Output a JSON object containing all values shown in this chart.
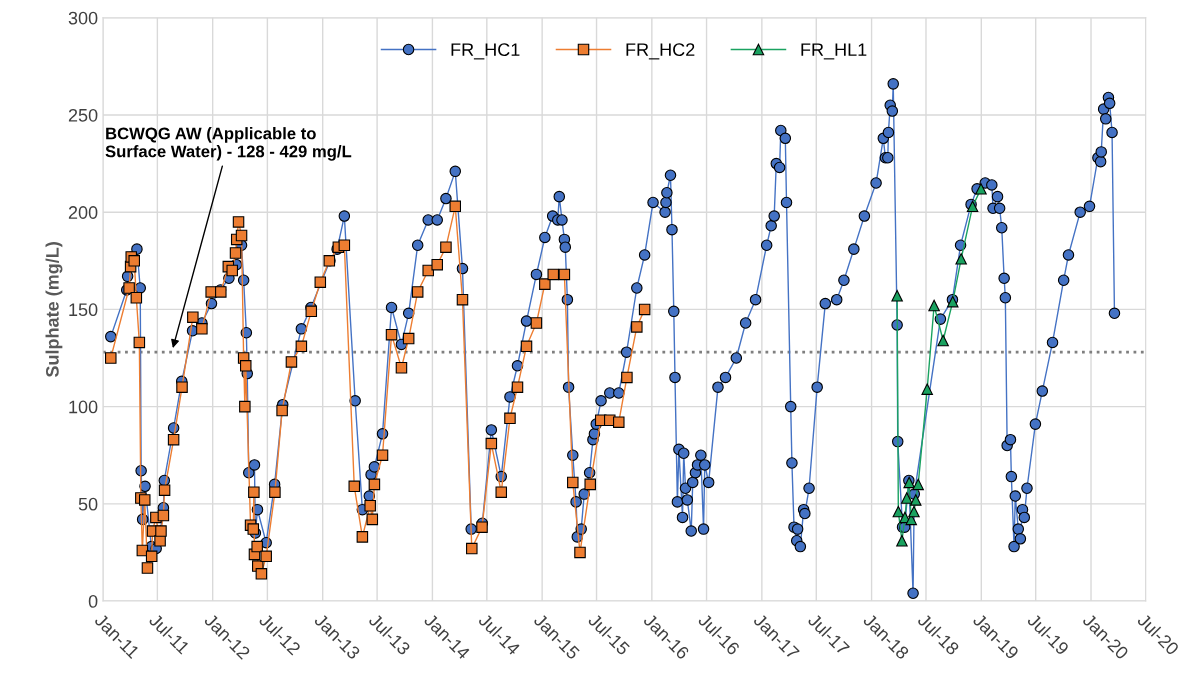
{
  "chart_data": {
    "type": "line",
    "ylabel": "Sulphate (mg/L)",
    "xlim": [
      "2011-01-01",
      "2020-07-01"
    ],
    "xticks": [
      {
        "value": "2011-01-01",
        "label": "Jan-11"
      },
      {
        "value": "2011-07-01",
        "label": "Jul-11"
      },
      {
        "value": "2012-01-01",
        "label": "Jan-12"
      },
      {
        "value": "2012-07-01",
        "label": "Jul-12"
      },
      {
        "value": "2013-01-01",
        "label": "Jan-13"
      },
      {
        "value": "2013-07-01",
        "label": "Jul-13"
      },
      {
        "value": "2014-01-01",
        "label": "Jan-14"
      },
      {
        "value": "2014-07-01",
        "label": "Jul-14"
      },
      {
        "value": "2015-01-01",
        "label": "Jan-15"
      },
      {
        "value": "2015-07-01",
        "label": "Jul-15"
      },
      {
        "value": "2016-01-01",
        "label": "Jan-16"
      },
      {
        "value": "2016-07-01",
        "label": "Jul-16"
      },
      {
        "value": "2017-01-01",
        "label": "Jan-17"
      },
      {
        "value": "2017-07-01",
        "label": "Jul-17"
      },
      {
        "value": "2018-01-01",
        "label": "Jan-18"
      },
      {
        "value": "2018-07-01",
        "label": "Jul-18"
      },
      {
        "value": "2019-01-01",
        "label": "Jan-19"
      },
      {
        "value": "2019-07-01",
        "label": "Jul-19"
      },
      {
        "value": "2020-01-01",
        "label": "Jan-20"
      },
      {
        "value": "2020-07-01",
        "label": "Jul-20"
      }
    ],
    "ylim": [
      0,
      300
    ],
    "yticks": [
      0,
      50,
      100,
      150,
      200,
      250,
      300
    ],
    "grid": true,
    "legend": "top",
    "ref_lines": [
      {
        "axis": "y",
        "value": 128,
        "color": "#7f7f7f",
        "line_style": "dotted"
      }
    ],
    "annotations": [
      "BCWQG AW (Applicable to\nSurface Water) - 128 - 429 mg/L"
    ],
    "series": [
      {
        "name": "FR_HC1",
        "color": "#4472c4",
        "marker": "circle",
        "x": [
          "2011-01-27",
          "2011-03-21",
          "2011-03-24",
          "2011-04-07",
          "2011-04-24",
          "2011-05-05",
          "2011-05-08",
          "2011-05-13",
          "2011-05-21",
          "2011-06-11",
          "2011-06-27",
          "2011-07-11",
          "2011-07-21",
          "2011-07-24",
          "2011-08-24",
          "2011-09-20",
          "2011-10-26",
          "2011-11-26",
          "2011-12-28",
          "2012-01-27",
          "2012-02-24",
          "2012-03-07",
          "2012-03-20",
          "2012-04-06",
          "2012-04-13",
          "2012-04-22",
          "2012-04-25",
          "2012-04-30",
          "2012-05-19",
          "2012-05-22",
          "2012-05-29",
          "2012-06-27",
          "2012-07-25",
          "2012-08-21",
          "2012-10-22",
          "2012-11-23",
          "2013-01-25",
          "2013-02-18",
          "2013-03-14",
          "2013-04-19",
          "2013-05-13",
          "2013-06-05",
          "2013-06-11",
          "2013-06-22",
          "2013-07-19",
          "2013-08-18",
          "2013-09-20",
          "2013-10-14",
          "2013-11-13",
          "2013-12-18",
          "2014-01-17",
          "2014-02-15",
          "2014-03-18",
          "2014-04-11",
          "2014-05-10",
          "2014-06-16",
          "2014-07-16",
          "2014-08-18",
          "2014-09-16",
          "2014-10-11",
          "2014-11-10",
          "2014-12-13",
          "2015-01-10",
          "2015-02-05",
          "2015-02-22",
          "2015-02-27",
          "2015-03-08",
          "2015-03-16",
          "2015-03-19",
          "2015-03-26",
          "2015-03-30",
          "2015-04-13",
          "2015-04-24",
          "2015-04-28",
          "2015-05-11",
          "2015-05-21",
          "2015-06-08",
          "2015-06-19",
          "2015-06-24",
          "2015-06-30",
          "2015-07-16",
          "2015-08-14",
          "2015-09-13",
          "2015-10-09",
          "2015-11-12",
          "2015-12-08",
          "2016-01-05",
          "2016-02-14",
          "2016-02-17",
          "2016-02-20",
          "2016-03-03",
          "2016-03-08",
          "2016-03-14",
          "2016-03-18",
          "2016-03-26",
          "2016-03-31",
          "2016-04-12",
          "2016-04-16",
          "2016-04-22",
          "2016-04-28",
          "2016-05-11",
          "2016-05-16",
          "2016-05-25",
          "2016-06-01",
          "2016-06-12",
          "2016-06-21",
          "2016-06-25",
          "2016-07-08",
          "2016-08-08",
          "2016-09-02",
          "2016-10-08",
          "2016-11-08",
          "2016-12-11",
          "2017-01-17",
          "2017-02-01",
          "2017-02-11",
          "2017-02-18",
          "2017-03-01",
          "2017-03-05",
          "2017-03-20",
          "2017-03-24",
          "2017-04-07",
          "2017-04-11",
          "2017-04-18",
          "2017-04-27",
          "2017-04-30",
          "2017-05-09",
          "2017-05-20",
          "2017-05-24",
          "2017-06-07",
          "2017-07-04",
          "2017-07-31",
          "2017-09-07",
          "2017-10-01",
          "2017-11-03",
          "2017-12-08",
          "2018-01-16",
          "2018-02-09",
          "2018-02-16",
          "2018-02-24",
          "2018-02-26",
          "2018-03-04",
          "2018-03-11",
          "2018-03-14",
          "2018-03-27",
          "2018-03-29",
          "2018-04-14",
          "2018-04-21",
          "2018-05-05",
          "2018-05-19",
          "2018-05-23",
          "2018-08-18",
          "2018-09-27",
          "2018-10-24",
          "2018-11-28",
          "2018-12-18",
          "2019-01-14",
          "2019-02-05",
          "2019-02-09",
          "2019-02-24",
          "2019-03-03",
          "2019-03-10",
          "2019-03-18",
          "2019-03-22",
          "2019-03-28",
          "2019-04-08",
          "2019-04-11",
          "2019-04-20",
          "2019-04-24",
          "2019-05-04",
          "2019-05-11",
          "2019-05-18",
          "2019-05-24",
          "2019-06-02",
          "2019-06-30",
          "2019-07-23",
          "2019-08-26",
          "2019-10-02",
          "2019-10-18",
          "2019-11-26",
          "2019-12-27",
          "2020-01-24",
          "2020-02-02",
          "2020-02-04",
          "2020-02-12",
          "2020-02-19",
          "2020-02-28",
          "2020-03-03",
          "2020-03-11",
          "2020-03-19"
        ],
        "values": [
          136,
          160,
          167,
          177,
          181,
          161,
          67,
          42,
          59,
          28,
          27,
          36,
          48,
          62,
          89,
          113,
          139,
          143,
          153,
          160,
          166,
          172,
          173,
          183,
          165,
          138,
          117,
          66,
          70,
          35,
          47,
          30,
          60,
          101,
          140,
          151,
          175,
          181,
          198,
          103,
          47,
          54,
          65,
          69,
          86,
          151,
          132,
          148,
          183,
          196,
          196,
          207,
          221,
          171,
          37,
          40,
          88,
          64,
          105,
          121,
          144,
          168,
          187,
          198,
          196,
          208,
          196,
          186,
          182,
          155,
          110,
          75,
          51,
          33,
          37,
          55,
          66,
          83,
          86,
          91,
          103,
          107,
          107,
          128,
          161,
          178,
          205,
          200,
          205,
          210,
          219,
          191,
          149,
          115,
          51,
          78,
          43,
          76,
          58,
          52,
          36,
          61,
          66,
          70,
          75,
          37,
          70,
          61,
          110,
          115,
          125,
          143,
          155,
          183,
          193,
          198,
          225,
          223,
          242,
          238,
          205,
          100,
          71,
          38,
          31,
          37,
          28,
          47,
          45,
          58,
          110,
          153,
          155,
          165,
          181,
          198,
          215,
          238,
          228,
          228,
          241,
          255,
          252,
          266,
          142,
          82,
          38,
          38,
          62,
          4,
          55,
          145,
          155,
          183,
          204,
          212,
          215,
          214,
          202,
          208,
          202,
          192,
          166,
          156,
          80,
          83,
          64,
          28,
          54,
          37,
          32,
          47,
          43,
          58,
          91,
          108,
          133,
          165,
          178,
          200,
          203,
          228,
          226,
          231,
          253,
          248,
          259,
          256,
          241,
          148
        ]
      },
      {
        "name": "FR_HC2",
        "color": "#ed7d31",
        "marker": "square",
        "x": [
          "2011-01-27",
          "2011-03-29",
          "2011-04-03",
          "2011-04-05",
          "2011-04-15",
          "2011-04-22",
          "2011-05-02",
          "2011-05-07",
          "2011-05-12",
          "2011-05-20",
          "2011-05-29",
          "2011-06-12",
          "2011-06-15",
          "2011-06-26",
          "2011-07-10",
          "2011-07-13",
          "2011-07-21",
          "2011-07-25",
          "2011-08-24",
          "2011-09-21",
          "2011-10-27",
          "2011-11-26",
          "2011-12-27",
          "2012-01-28",
          "2012-02-22",
          "2012-03-06",
          "2012-03-17",
          "2012-03-21",
          "2012-03-27",
          "2012-04-06",
          "2012-04-13",
          "2012-04-17",
          "2012-04-20",
          "2012-05-06",
          "2012-05-15",
          "2012-05-17",
          "2012-05-19",
          "2012-05-28",
          "2012-05-30",
          "2012-06-11",
          "2012-06-27",
          "2012-07-26",
          "2012-08-19",
          "2012-09-19",
          "2012-10-22",
          "2012-11-24",
          "2012-12-24",
          "2013-01-23",
          "2013-02-22",
          "2013-03-14",
          "2013-04-16",
          "2013-05-13",
          "2013-06-08",
          "2013-06-15",
          "2013-06-22",
          "2013-07-19",
          "2013-08-18",
          "2013-09-20",
          "2013-10-14",
          "2013-11-13",
          "2013-12-18",
          "2014-01-17",
          "2014-02-15",
          "2014-03-18",
          "2014-04-11",
          "2014-05-12",
          "2014-06-15",
          "2014-07-16",
          "2014-08-18",
          "2014-09-16",
          "2014-10-11",
          "2014-11-10",
          "2014-12-13",
          "2015-01-10",
          "2015-02-07",
          "2015-03-16",
          "2015-04-13",
          "2015-05-07",
          "2015-06-10",
          "2015-07-15",
          "2015-08-14",
          "2015-09-13",
          "2015-10-10",
          "2015-11-12",
          "2015-12-08"
        ],
        "values": [
          125,
          161,
          172,
          177,
          175,
          156,
          133,
          53,
          26,
          52,
          17,
          23,
          36,
          43,
          31,
          36,
          44,
          57,
          83,
          110,
          146,
          140,
          159,
          159,
          172,
          170,
          179,
          186,
          195,
          188,
          125,
          100,
          121,
          39,
          37,
          56,
          24,
          28,
          18,
          14,
          23,
          56,
          98,
          123,
          131,
          149,
          164,
          175,
          182,
          183,
          59,
          33,
          49,
          42,
          60,
          75,
          137,
          120,
          135,
          159,
          170,
          173,
          182,
          203,
          155,
          27,
          38,
          81,
          56,
          94,
          110,
          131,
          143,
          163,
          168,
          168,
          61,
          25,
          60,
          93,
          93,
          92,
          115,
          141,
          150
        ]
      },
      {
        "name": "FR_HL1",
        "color": "#1aa260",
        "marker": "triangle",
        "x": [
          "2018-03-27",
          "2018-03-31",
          "2018-04-12",
          "2018-04-22",
          "2018-04-28",
          "2018-05-06",
          "2018-05-13",
          "2018-05-22",
          "2018-05-28",
          "2018-06-05",
          "2018-07-05",
          "2018-07-28",
          "2018-08-27",
          "2018-09-28",
          "2018-10-26",
          "2018-12-03",
          "2018-12-31"
        ],
        "values": [
          157,
          46,
          31,
          43,
          53,
          61,
          42,
          46,
          52,
          60,
          109,
          152,
          134,
          154,
          176,
          203,
          212
        ]
      }
    ]
  }
}
